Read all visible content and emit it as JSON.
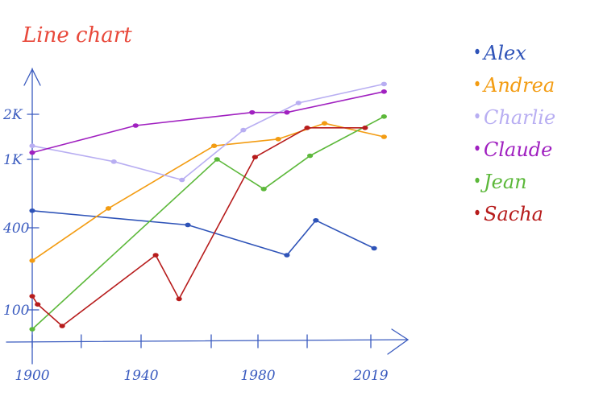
{
  "chart_data": {
    "type": "line",
    "title": "Line chart",
    "xlabel": "",
    "ylabel": "",
    "x_ticks": [
      "1900",
      "1940",
      "1980",
      "2019"
    ],
    "y_ticks": [
      "100",
      "400",
      "1K",
      "2K"
    ],
    "legend_position": "right",
    "grid": false,
    "series": [
      {
        "name": "Alex",
        "color": "#2e53b8",
        "points": [
          [
            1900,
            550
          ],
          [
            1956,
            425
          ],
          [
            1990,
            300
          ],
          [
            2000,
            465
          ],
          [
            2020,
            325
          ]
        ]
      },
      {
        "name": "Andrea",
        "color": "#f39c12",
        "points": [
          [
            1900,
            280
          ],
          [
            1928,
            570
          ],
          [
            1965,
            1300
          ],
          [
            1987,
            1450
          ],
          [
            2003,
            1800
          ],
          [
            2023,
            1500
          ]
        ]
      },
      {
        "name": "Charlie",
        "color": "#b8aef2",
        "points": [
          [
            1900,
            1300
          ],
          [
            1930,
            980
          ],
          [
            1954,
            820
          ],
          [
            1975,
            1650
          ],
          [
            1994,
            2300
          ],
          [
            2023,
            2800
          ]
        ]
      },
      {
        "name": "Claude",
        "color": "#a020c0",
        "points": [
          [
            1900,
            1150
          ],
          [
            1938,
            1750
          ],
          [
            1978,
            2050
          ],
          [
            1990,
            2050
          ],
          [
            2023,
            2600
          ]
        ]
      },
      {
        "name": "Jean",
        "color": "#5cb83a",
        "points": [
          [
            1900,
            40
          ],
          [
            1966,
            1000
          ],
          [
            1982,
            740
          ],
          [
            1998,
            1080
          ],
          [
            2023,
            1950
          ]
        ]
      },
      {
        "name": "Sacha",
        "color": "#b71c1c",
        "points": [
          [
            1900,
            150
          ],
          [
            1902,
            120
          ],
          [
            1911,
            50
          ],
          [
            1945,
            300
          ],
          [
            1953,
            140
          ],
          [
            1979,
            1050
          ],
          [
            1997,
            1700
          ],
          [
            2017,
            1700
          ]
        ]
      }
    ]
  }
}
